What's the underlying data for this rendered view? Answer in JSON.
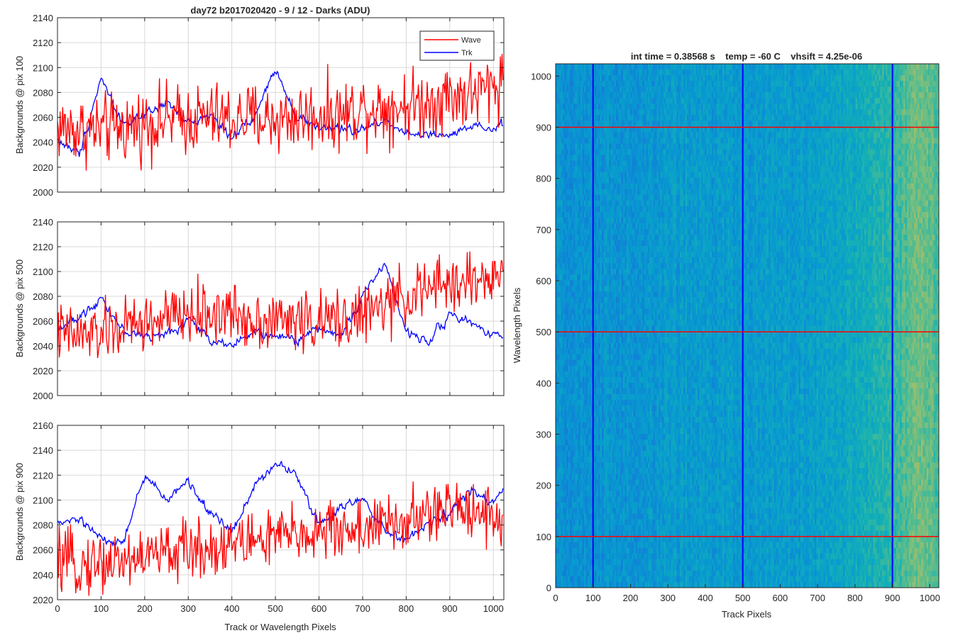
{
  "figure_title": "day72 b2017020420 - 9 / 12 - Darks (ADU)",
  "colors": {
    "wave": "#ff0000",
    "trk": "#0000ff",
    "grid": "#d9d9d9",
    "axis": "#262626"
  },
  "chart_data": [
    {
      "type": "line",
      "title": "day72 b2017020420 - 9 / 12 - Darks (ADU)",
      "xlabel": "",
      "ylabel": "Backgrounds @ pix 100",
      "xlim": [
        0,
        1024
      ],
      "ylim": [
        2000,
        2140
      ],
      "xticks": [
        0,
        100,
        200,
        300,
        400,
        500,
        600,
        700,
        800,
        900,
        1000
      ],
      "yticks": [
        2000,
        2020,
        2040,
        2060,
        2080,
        2100,
        2120,
        2140
      ],
      "show_xticklabels": false,
      "grid": true,
      "legend": "top-right",
      "x": [
        0,
        50,
        100,
        150,
        200,
        250,
        300,
        350,
        400,
        450,
        500,
        550,
        600,
        650,
        700,
        750,
        800,
        850,
        900,
        950,
        1000,
        1023
      ],
      "series": [
        {
          "name": "Wave",
          "color": "#ff0000",
          "noise": 14,
          "values": [
            2052,
            2050,
            2050,
            2052,
            2055,
            2058,
            2058,
            2060,
            2058,
            2060,
            2058,
            2060,
            2062,
            2062,
            2068,
            2068,
            2070,
            2072,
            2078,
            2078,
            2085,
            2092
          ]
        },
        {
          "name": "Trk",
          "color": "#0000ff",
          "noise": 6,
          "values": [
            2042,
            2030,
            2092,
            2055,
            2060,
            2072,
            2055,
            2062,
            2045,
            2058,
            2100,
            2060,
            2052,
            2050,
            2050,
            2058,
            2048,
            2045,
            2045,
            2052,
            2050,
            2055
          ]
        }
      ]
    },
    {
      "type": "line",
      "title": "",
      "xlabel": "",
      "ylabel": "Backgrounds @ pix 500",
      "xlim": [
        0,
        1024
      ],
      "ylim": [
        2000,
        2140
      ],
      "xticks": [
        0,
        100,
        200,
        300,
        400,
        500,
        600,
        700,
        800,
        900,
        1000
      ],
      "yticks": [
        2000,
        2020,
        2040,
        2060,
        2080,
        2100,
        2120,
        2140
      ],
      "show_xticklabels": false,
      "grid": true,
      "legend": "none",
      "x": [
        0,
        50,
        100,
        150,
        200,
        250,
        300,
        350,
        400,
        450,
        500,
        550,
        600,
        650,
        700,
        750,
        800,
        850,
        900,
        950,
        1000,
        1023
      ],
      "series": [
        {
          "name": "Wave",
          "color": "#ff0000",
          "noise": 12,
          "values": [
            2050,
            2048,
            2050,
            2055,
            2058,
            2062,
            2065,
            2066,
            2066,
            2062,
            2060,
            2062,
            2058,
            2062,
            2065,
            2072,
            2080,
            2085,
            2090,
            2092,
            2095,
            2098
          ]
        },
        {
          "name": "Trk",
          "color": "#0000ff",
          "noise": 6,
          "values": [
            2055,
            2062,
            2080,
            2052,
            2048,
            2048,
            2062,
            2045,
            2042,
            2050,
            2048,
            2045,
            2055,
            2048,
            2080,
            2108,
            2050,
            2045,
            2065,
            2058,
            2050,
            2048
          ]
        }
      ]
    },
    {
      "type": "line",
      "title": "",
      "xlabel": "Track or Wavelength Pixels",
      "ylabel": "Backgrounds @ pix 900",
      "xlim": [
        0,
        1024
      ],
      "ylim": [
        2020,
        2160
      ],
      "xticks": [
        0,
        100,
        200,
        300,
        400,
        500,
        600,
        700,
        800,
        900,
        1000
      ],
      "yticks": [
        2020,
        2040,
        2060,
        2080,
        2100,
        2120,
        2140,
        2160
      ],
      "show_xticklabels": true,
      "grid": true,
      "legend": "none",
      "x": [
        0,
        50,
        100,
        150,
        200,
        250,
        300,
        350,
        400,
        450,
        500,
        550,
        600,
        650,
        700,
        750,
        800,
        850,
        900,
        950,
        1000,
        1023
      ],
      "series": [
        {
          "name": "Wave",
          "color": "#ff0000",
          "noise": 12,
          "values": [
            2050,
            2048,
            2050,
            2052,
            2055,
            2058,
            2060,
            2062,
            2065,
            2068,
            2070,
            2072,
            2075,
            2076,
            2078,
            2080,
            2082,
            2088,
            2092,
            2095,
            2088,
            2082
          ]
        },
        {
          "name": "Trk",
          "color": "#0000ff",
          "noise": 6,
          "values": [
            2080,
            2085,
            2068,
            2065,
            2120,
            2100,
            2115,
            2090,
            2075,
            2110,
            2130,
            2120,
            2080,
            2095,
            2100,
            2075,
            2068,
            2080,
            2090,
            2108,
            2095,
            2112
          ]
        }
      ]
    },
    {
      "type": "heatmap",
      "title": "int time = 0.38568 s    temp = -60 C    vhsift = 4.25e-06",
      "xlabel": "Track Pixels",
      "ylabel": "Wavelength Pixels",
      "xlim": [
        0,
        1024
      ],
      "ylim": [
        0,
        1024
      ],
      "xticks": [
        0,
        100,
        200,
        300,
        400,
        500,
        600,
        700,
        800,
        900,
        1000
      ],
      "yticks": [
        0,
        100,
        200,
        300,
        400,
        500,
        600,
        700,
        800,
        900,
        1000
      ],
      "colormap": "parula",
      "column_level_profile": {
        "x": [
          0,
          100,
          200,
          300,
          400,
          500,
          600,
          700,
          800,
          850,
          900,
          950,
          1000,
          1023
        ],
        "level": [
          0.3,
          0.3,
          0.31,
          0.33,
          0.34,
          0.33,
          0.34,
          0.36,
          0.4,
          0.44,
          0.48,
          0.58,
          0.56,
          0.52
        ]
      },
      "vertical_lines": {
        "x": [
          100,
          500,
          900
        ],
        "color": "#0000ff"
      },
      "horizontal_lines": {
        "y": [
          100,
          500,
          900
        ],
        "color": "#ff0000"
      }
    }
  ]
}
